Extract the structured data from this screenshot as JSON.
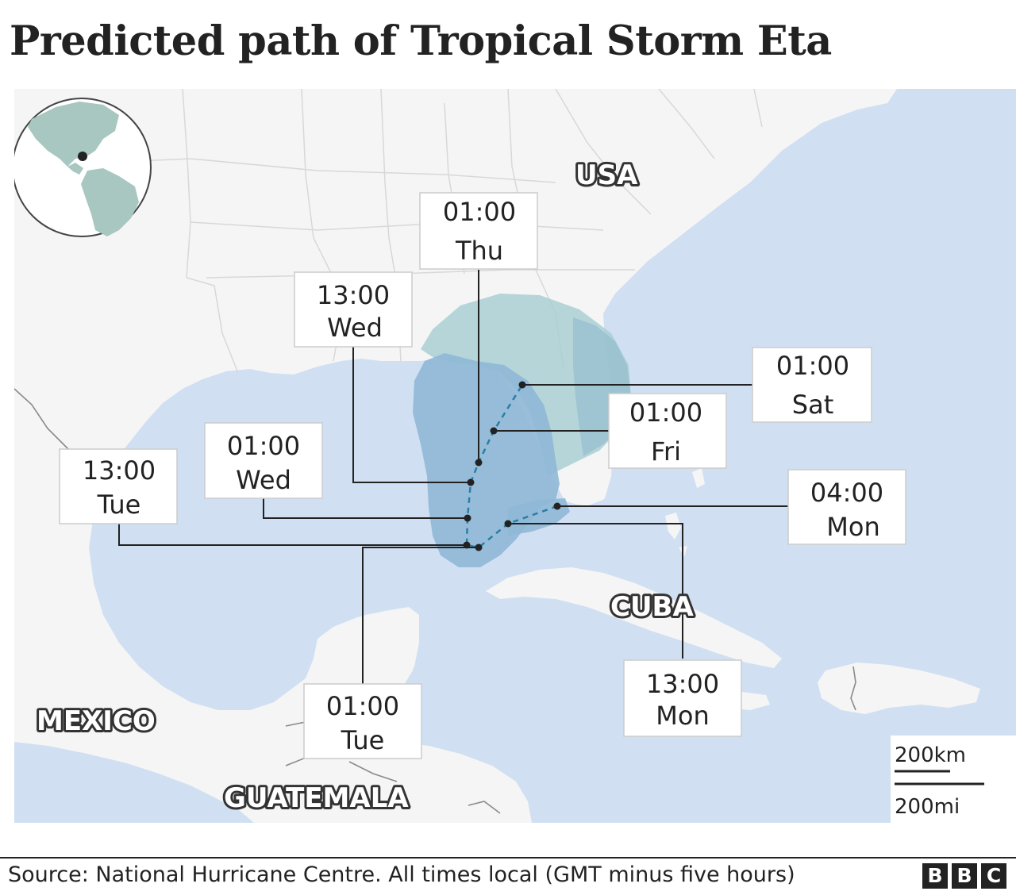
{
  "title": "Predicted path of Tropical Storm Eta",
  "source": "Source: National Hurricane Centre. All times local (GMT minus five hours)",
  "brand": [
    "B",
    "B",
    "C"
  ],
  "countries": {
    "usa": "USA",
    "cuba": "CUBA",
    "mexico": "MEXICO",
    "guatemala": "GUATEMALA"
  },
  "forecast_points": [
    {
      "time": "04:00",
      "day": "Mon"
    },
    {
      "time": "13:00",
      "day": "Mon"
    },
    {
      "time": "01:00",
      "day": "Tue"
    },
    {
      "time": "13:00",
      "day": "Tue"
    },
    {
      "time": "01:00",
      "day": "Wed"
    },
    {
      "time": "13:00",
      "day": "Wed"
    },
    {
      "time": "01:00",
      "day": "Thu"
    },
    {
      "time": "01:00",
      "day": "Fri"
    },
    {
      "time": "01:00",
      "day": "Sat"
    }
  ],
  "scale": {
    "km": "200km",
    "mi": "200mi"
  },
  "colors": {
    "sea": "#d0e0f2",
    "land": "#f5f5f5",
    "cone": "#8fb8d6",
    "cone_outer": "#a9cfd4",
    "track": "#2a7fa3",
    "globe": "#a7c7c0"
  }
}
